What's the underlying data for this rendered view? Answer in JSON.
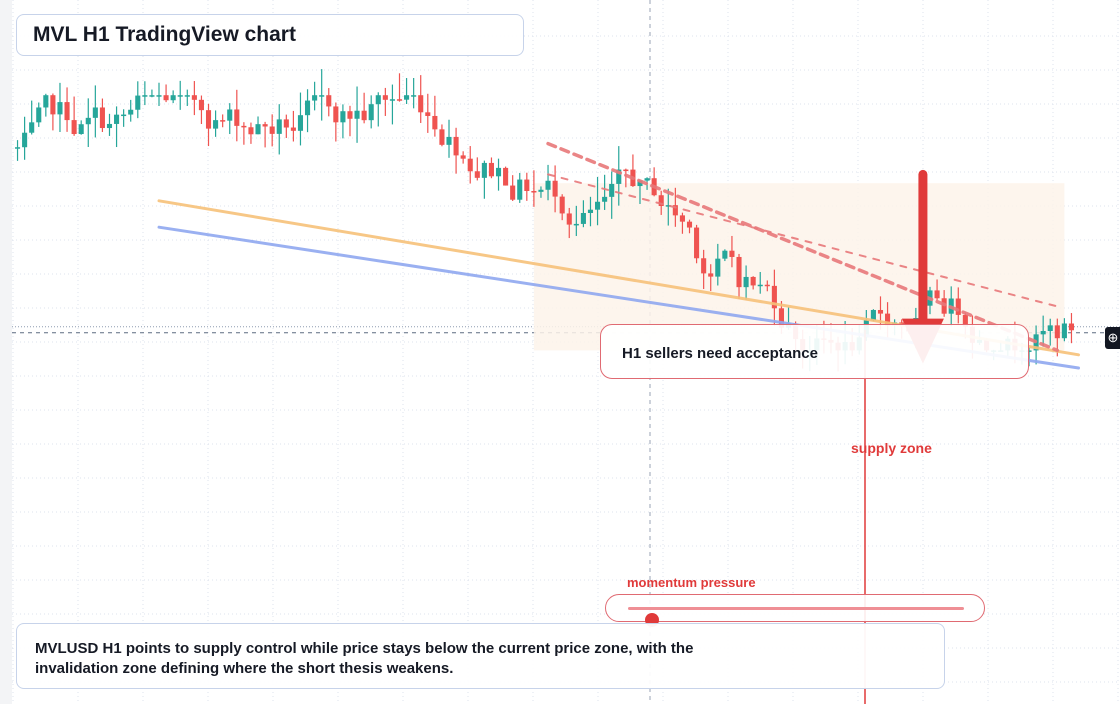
{
  "title": "MVL H1 TradingView chart",
  "callout": {
    "text": "H1 sellers need acceptance"
  },
  "supply_zone": {
    "label": "supply zone"
  },
  "momentum": {
    "label": "momentum pressure",
    "level": 0.07
  },
  "summary": {
    "line1": "MVLUSD H1 points to supply control while price stays below the current price zone, with the",
    "line2": "invalidation zone defining where the short thesis weakens."
  },
  "colors": {
    "up": "#26a69a",
    "down": "#ef5350",
    "down_deep": "#e03a3a",
    "ma_fast": "#f7c17a",
    "ma_slow": "#90a8f0",
    "trend_dashed": "#e8787a",
    "zone": "#fdf3ea",
    "grid": "#dde3ee"
  },
  "icons": {
    "crosshair": "crosshair-plus-icon"
  },
  "chart_data": {
    "type": "candlestick",
    "symbol": "MVLUSD",
    "timeframe": "H1",
    "bars": 150,
    "ylim": [
      0,
      100
    ],
    "current_price": 38,
    "open_start": 80,
    "moves": [
      [
        8,
        -0.6,
        1.8
      ],
      [
        9,
        -0.5,
        2.0
      ],
      [
        8,
        0.5,
        1.8
      ],
      [
        8,
        -0.2,
        1.7
      ],
      [
        8,
        0.1,
        1.6
      ],
      [
        8,
        0.0,
        2.2
      ],
      [
        10,
        0.4,
        2.0
      ],
      [
        8,
        -0.3,
        1.7
      ],
      [
        9,
        0.2,
        1.6
      ],
      [
        8,
        -0.3,
        1.6
      ],
      [
        8,
        -0.4,
        1.9
      ],
      [
        6,
        -1.5,
        1.6
      ],
      [
        12,
        -1.1,
        1.2
      ],
      [
        8,
        -1.2,
        1.4
      ],
      [
        8,
        -1.0,
        1.6
      ],
      [
        8,
        0.3,
        1.5
      ],
      [
        8,
        -0.2,
        1.4
      ],
      [
        8,
        -0.6,
        1.3
      ],
      [
        8,
        -0.1,
        1.4
      ]
    ],
    "trend_lines": {
      "ma_fast": {
        "x": [
          20,
          150
        ],
        "y": [
          68,
          33
        ]
      },
      "ma_slow": {
        "x": [
          20,
          150
        ],
        "y": [
          62,
          30
        ]
      },
      "dashed_short": {
        "x": [
          75,
          147
        ],
        "y": [
          81,
          34
        ]
      },
      "dashed_long": {
        "x": [
          75,
          147
        ],
        "y": [
          74,
          44
        ]
      }
    },
    "supply_zone": {
      "x": [
        73,
        148
      ],
      "y": [
        34,
        72
      ]
    },
    "arrow": {
      "x": 128,
      "y_from": 74,
      "y_to": 31
    }
  }
}
